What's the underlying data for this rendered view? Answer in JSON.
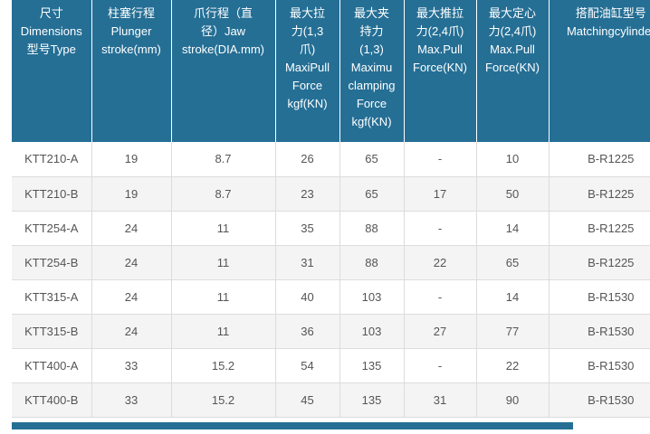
{
  "table": {
    "headers": [
      "尺寸\nDimensions\n型号Type",
      "柱塞行程\nPlunger\nstroke(mm)",
      "爪行程（直\n径）Jaw\nstroke(DIA.mm)",
      "最大拉\n力(1,3\n爪)\nMaxiPull\nForce\nkgf(KN)",
      "最大夹\n持力\n(1,3)\nMaximu\nclamping\nForce\nkgf(KN)",
      "最大推拉\n力(2,4爪)\nMax.Pull\nForce(KN)",
      "最大定心\n力(2,4爪)\nMax.Pull\nForce(KN)",
      "搭配油缸型号\nMatchingcylinder"
    ],
    "rows": [
      [
        "KTT210-A",
        "19",
        "8.7",
        "26",
        "65",
        "-",
        "10",
        "B-R1225"
      ],
      [
        "KTT210-B",
        "19",
        "8.7",
        "23",
        "65",
        "17",
        "50",
        "B-R1225"
      ],
      [
        "KTT254-A",
        "24",
        "11",
        "35",
        "88",
        "-",
        "14",
        "B-R1225"
      ],
      [
        "KTT254-B",
        "24",
        "11",
        "31",
        "88",
        "22",
        "65",
        "B-R1225"
      ],
      [
        "KTT315-A",
        "24",
        "11",
        "40",
        "103",
        "-",
        "14",
        "B-R1530"
      ],
      [
        "KTT315-B",
        "24",
        "11",
        "36",
        "103",
        "27",
        "77",
        "B-R1530"
      ],
      [
        "KTT400-A",
        "33",
        "15.2",
        "54",
        "135",
        "-",
        "22",
        "B-R1530"
      ],
      [
        "KTT400-B",
        "33",
        "15.2",
        "45",
        "135",
        "31",
        "90",
        "B-R1530"
      ]
    ]
  },
  "colors": {
    "header_bg": "#256f95",
    "header_text": "#ffffff",
    "row_alt_bg": "#f4f4f4",
    "cell_text": "#555555",
    "grid": "#dcdcdc"
  }
}
